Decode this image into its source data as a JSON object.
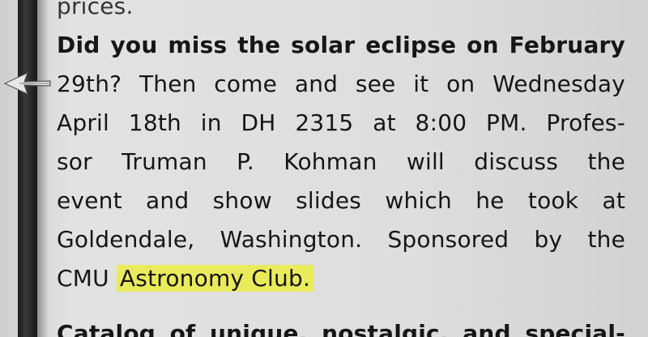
{
  "article": {
    "prev_line_fragment": "prices.",
    "headline_line": "Did you miss the solar eclipse on February",
    "body_lines": [
      "29th? Then come and see it on Wednesday",
      "April 18th in DH 2315 at 8:00 PM. Profes-",
      "sor Truman P. Kohman will discuss the",
      "event and show slides which he took at",
      "Goldendale, Washington. Sponsored by the"
    ],
    "last_line_prefix": "CMU",
    "highlighted_text": "Astronomy Club.",
    "next_item_line": "Catalog of unique, nostalgic, and special-"
  },
  "colors": {
    "highlight": "#eaeb5c",
    "binding": "#1a1a1a"
  }
}
